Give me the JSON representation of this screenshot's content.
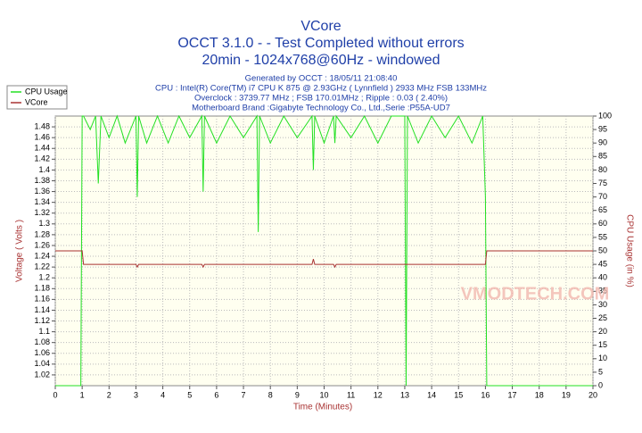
{
  "chart_data": {
    "type": "line",
    "title": "VCore",
    "subtitle": [
      "OCCT 3.1.0 -  - Test Completed without errors",
      "20min - 1024x768@60Hz - windowed"
    ],
    "info": [
      "Generated by OCCT : 18/05/11 21:08:40",
      "CPU : Intel(R) Core(TM) i7 CPU K 875 @ 2.93GHz ( Lynnfield ) 2933 MHz FSB 133MHz",
      "Overclock : 3739.77 MHz ; FSB 170.01MHz ; Ripple : 0.03 ( 2.40%)",
      "Motherboard Brand :Gigabyte Technology Co., Ltd.,Serie :P55A-UD7"
    ],
    "watermark": "VMODTECH.COM",
    "xlabel": "Time (Minutes)",
    "ylabel": "Voltage ( Volts )",
    "y2label": "CPU Usage (in %)",
    "x": [
      0,
      0.5,
      0.95,
      1.0,
      1.05,
      1.3,
      1.5,
      1.6,
      1.7,
      2.0,
      2.3,
      2.6,
      3.0,
      3.05,
      3.1,
      3.4,
      3.8,
      4.2,
      4.6,
      5.0,
      5.45,
      5.5,
      5.55,
      6.0,
      6.5,
      7.0,
      7.5,
      7.55,
      7.6,
      8.0,
      8.5,
      9.0,
      9.55,
      9.6,
      9.65,
      10.0,
      10.35,
      10.4,
      10.45,
      11.0,
      11.5,
      12.0,
      12.5,
      13.0,
      13.05,
      13.1,
      13.5,
      14.0,
      14.5,
      15.0,
      15.5,
      15.9,
      16.0,
      16.05,
      17,
      18,
      19,
      20
    ],
    "series": [
      {
        "name": "CPU Usage",
        "color": "#22e022",
        "axis": "y2",
        "values": [
          0,
          0,
          0,
          100,
          100,
          95,
          100,
          75,
          100,
          92,
          100,
          90,
          100,
          70,
          100,
          90,
          100,
          90,
          100,
          92,
          100,
          72,
          100,
          90,
          100,
          92,
          100,
          57,
          100,
          90,
          100,
          92,
          100,
          80,
          100,
          90,
          100,
          90,
          100,
          92,
          100,
          90,
          100,
          100,
          0,
          100,
          90,
          100,
          92,
          100,
          90,
          100,
          70,
          0,
          0,
          0,
          0,
          0
        ]
      },
      {
        "name": "VCore",
        "color": "#a83232",
        "values": [
          1.25,
          1.25,
          1.25,
          1.25,
          1.225,
          1.225,
          1.225,
          1.225,
          1.225,
          1.225,
          1.225,
          1.225,
          1.225,
          1.22,
          1.225,
          1.225,
          1.225,
          1.225,
          1.225,
          1.225,
          1.225,
          1.22,
          1.225,
          1.225,
          1.225,
          1.225,
          1.225,
          1.225,
          1.225,
          1.225,
          1.225,
          1.225,
          1.225,
          1.235,
          1.225,
          1.225,
          1.225,
          1.22,
          1.225,
          1.225,
          1.225,
          1.225,
          1.225,
          1.225,
          1.225,
          1.225,
          1.225,
          1.225,
          1.225,
          1.225,
          1.225,
          1.225,
          1.225,
          1.25,
          1.25,
          1.25,
          1.25,
          1.25
        ]
      }
    ],
    "xlim": [
      0,
      20
    ],
    "xticks": [
      0,
      1,
      2,
      3,
      4,
      5,
      6,
      7,
      8,
      9,
      10,
      11,
      12,
      13,
      14,
      15,
      16,
      17,
      18,
      19,
      20
    ],
    "ylim": [
      1.0,
      1.5
    ],
    "yticks": [
      1.02,
      1.04,
      1.06,
      1.08,
      1.1,
      1.12,
      1.14,
      1.16,
      1.18,
      1.2,
      1.22,
      1.24,
      1.26,
      1.28,
      1.3,
      1.32,
      1.34,
      1.36,
      1.38,
      1.4,
      1.42,
      1.44,
      1.46,
      1.48
    ],
    "y2lim": [
      0,
      100
    ],
    "y2ticks": [
      0,
      5,
      10,
      15,
      20,
      25,
      30,
      35,
      40,
      45,
      50,
      55,
      60,
      65,
      70,
      75,
      80,
      85,
      90,
      95,
      100
    ],
    "grid": true,
    "legend": "top-left"
  }
}
